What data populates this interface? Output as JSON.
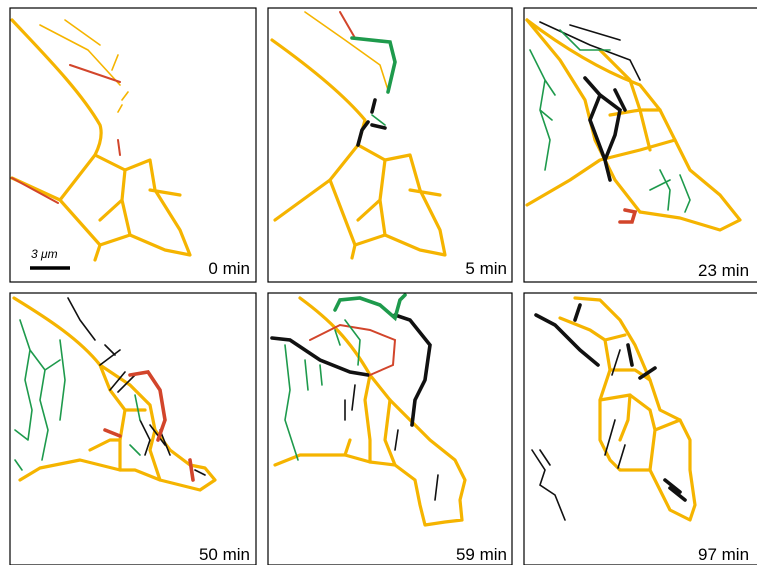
{
  "panels": [
    {
      "label": "0 min"
    },
    {
      "label": "5 min"
    },
    {
      "label": "23 min"
    },
    {
      "label": "50 min"
    },
    {
      "label": "59 min"
    },
    {
      "label": "97 min"
    }
  ],
  "scale_bar": {
    "label": "3 μm"
  }
}
